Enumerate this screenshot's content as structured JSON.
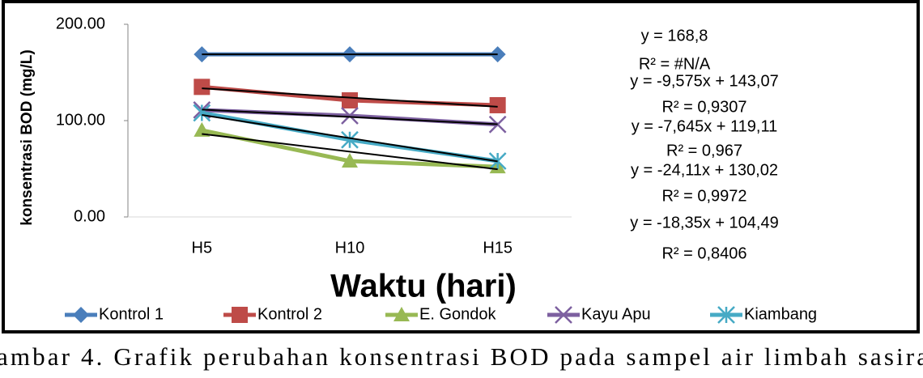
{
  "chart_data": {
    "type": "line",
    "x_label": "Waktu (hari)",
    "y_label": "konsentrasi BOD (mg/L)",
    "categories": [
      "H5",
      "H10",
      "H15"
    ],
    "ylim": [
      0,
      200
    ],
    "yticks": [
      {
        "value": 0,
        "label": "0.00"
      },
      {
        "value": 100,
        "label": "100.00"
      },
      {
        "value": 200,
        "label": "200.00"
      }
    ],
    "grid": false,
    "legend": "bottom",
    "series": [
      {
        "name": "Kontrol 1",
        "color": "#4a7ebb",
        "marker": "diamond",
        "values": [
          168.8,
          168.8,
          168.8
        ]
      },
      {
        "name": "Kontrol 2",
        "color": "#be4b48",
        "marker": "square",
        "values": [
          135,
          121,
          116
        ]
      },
      {
        "name": "E. Gondok",
        "color": "#98b954",
        "marker": "triangle",
        "values": [
          90,
          58,
          52
        ]
      },
      {
        "name": "Kayu Apu",
        "color": "#7d60a0",
        "marker": "x",
        "values": [
          111,
          105,
          96
        ]
      },
      {
        "name": "Kiambang",
        "color": "#46aac5",
        "marker": "star",
        "values": [
          108,
          80,
          58
        ]
      }
    ],
    "trendlines": [
      {
        "slope": 0,
        "intercept": 168.8,
        "equation": "y = 168,8",
        "r2": "R² = #N/A"
      },
      {
        "slope": -9.575,
        "intercept": 143.07,
        "equation": "y = -9,575x + 143,07",
        "r2": "R² = 0,9307"
      },
      {
        "slope": -7.645,
        "intercept": 119.11,
        "equation": "y = -7,645x + 119,11",
        "r2": "R² = 0,967"
      },
      {
        "slope": -24.11,
        "intercept": 130.02,
        "equation": "y = -24,11x + 130,02",
        "r2": "R² = 0,9972"
      },
      {
        "slope": -18.35,
        "intercept": 104.49,
        "equation": "y = -18,35x + 104,49",
        "r2": "R² = 0,8406"
      }
    ],
    "trendline_color": "#000000"
  },
  "caption": "ambar 4.  Grafik  perubahan  konsentrasi  BOD  pada  sampel  air  limbah  sasira"
}
